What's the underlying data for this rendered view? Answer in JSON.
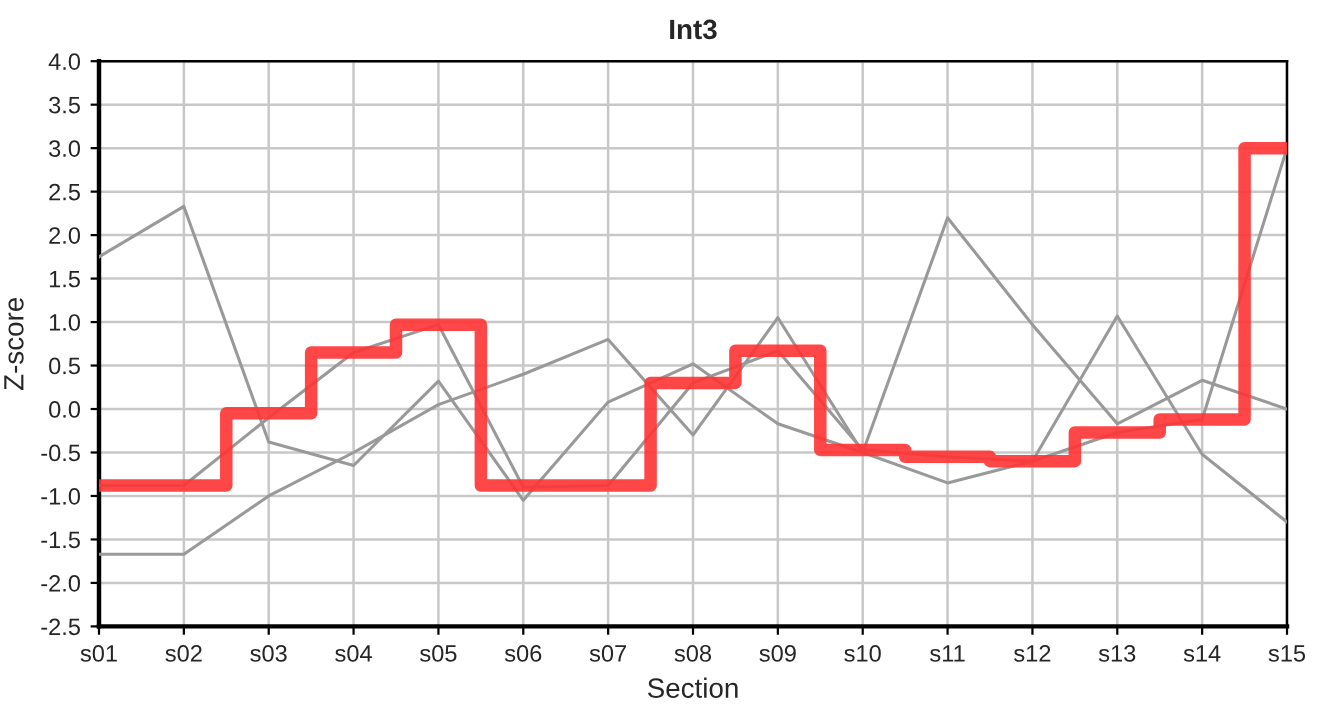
{
  "chart_data": {
    "type": "line",
    "title": "Int3",
    "xlabel": "Section",
    "ylabel": "Z-score",
    "categories": [
      "s01",
      "s02",
      "s03",
      "s04",
      "s05",
      "s06",
      "s07",
      "s08",
      "s09",
      "s10",
      "s11",
      "s12",
      "s13",
      "s14",
      "s15"
    ],
    "series": [
      {
        "color": "#999999",
        "values": [
          1.75,
          2.33,
          -0.38,
          -0.65,
          0.32,
          -1.05,
          0.08,
          0.52,
          -0.17,
          -0.5,
          -0.85,
          -0.6,
          1.07,
          -0.52,
          -1.3
        ]
      },
      {
        "color": "#999999",
        "values": [
          -1.67,
          -1.67,
          -1.0,
          -0.5,
          0.05,
          0.4,
          0.8,
          -0.3,
          1.05,
          -0.5,
          2.2,
          0.97,
          -0.17,
          0.33,
          0.0
        ]
      },
      {
        "color": "#999999",
        "values": [
          -0.88,
          -0.88,
          -0.1,
          0.65,
          0.97,
          -0.9,
          -0.88,
          0.3,
          0.67,
          -0.47,
          -0.55,
          -0.6,
          -0.27,
          -0.12,
          3.0
        ]
      },
      {
        "type": "step",
        "color": "#ff3333",
        "values": [
          -0.88,
          -0.88,
          -0.05,
          0.65,
          0.97,
          -0.88,
          -0.88,
          0.3,
          0.67,
          -0.47,
          -0.55,
          -0.6,
          -0.27,
          -0.12,
          3.0
        ]
      }
    ],
    "ylim": [
      -2.5,
      4.0
    ],
    "yticks": [
      {
        "value": -2.5,
        "label": "-2.5"
      },
      {
        "value": -2.0,
        "label": "-2.0"
      },
      {
        "value": -1.5,
        "label": "-1.5"
      },
      {
        "value": -1.0,
        "label": "-1.0"
      },
      {
        "value": -0.5,
        "label": "-0.5"
      },
      {
        "value": 0.0,
        "label": "0.0"
      },
      {
        "value": 0.5,
        "label": "0.5"
      },
      {
        "value": 1.0,
        "label": "1.0"
      },
      {
        "value": 1.5,
        "label": "1.5"
      },
      {
        "value": 2.0,
        "label": "2.0"
      },
      {
        "value": 2.5,
        "label": "2.5"
      },
      {
        "value": 3.0,
        "label": "3.0"
      },
      {
        "value": 3.5,
        "label": "3.5"
      },
      {
        "value": 4.0,
        "label": "4.0"
      }
    ],
    "grid": true,
    "marker": "none",
    "line_style": "solid"
  }
}
